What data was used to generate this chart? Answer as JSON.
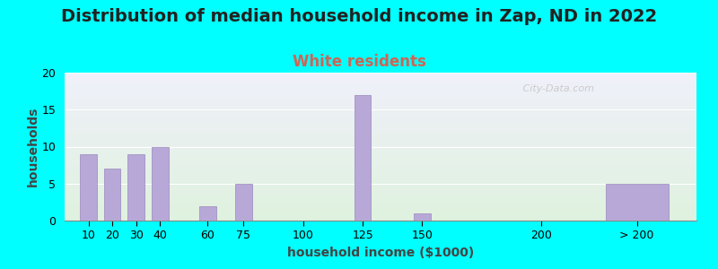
{
  "title": "Distribution of median household income in Zap, ND in 2022",
  "subtitle": "White residents",
  "xlabel": "household income ($1000)",
  "ylabel": "households",
  "background_color": "#00FFFF",
  "bar_color": "#b8a8d8",
  "bar_edge_color": "#9988bb",
  "values": [
    9,
    7,
    9,
    10,
    2,
    5,
    0,
    17,
    1,
    0,
    5
  ],
  "bar_positions": [
    10,
    20,
    30,
    40,
    60,
    75,
    100,
    125,
    150,
    200,
    240
  ],
  "bar_widths": [
    8,
    8,
    8,
    8,
    8,
    8,
    8,
    8,
    8,
    8,
    30
  ],
  "ylim": [
    0,
    20
  ],
  "yticks": [
    0,
    5,
    10,
    15,
    20
  ],
  "xtick_labels": [
    "10",
    "20",
    "30",
    "40",
    "60",
    "75",
    "100",
    "125",
    "150",
    "200",
    "> 200"
  ],
  "xtick_positions": [
    10,
    20,
    30,
    40,
    60,
    75,
    100,
    125,
    150,
    200,
    240
  ],
  "xlim": [
    0,
    265
  ],
  "title_fontsize": 14,
  "subtitle_fontsize": 12,
  "subtitle_color": "#cc6655",
  "axis_label_fontsize": 10,
  "tick_fontsize": 9,
  "watermark": " City-Data.com",
  "grad_top_color": "#dff2df",
  "grad_bottom_color": "#f0f0fa"
}
